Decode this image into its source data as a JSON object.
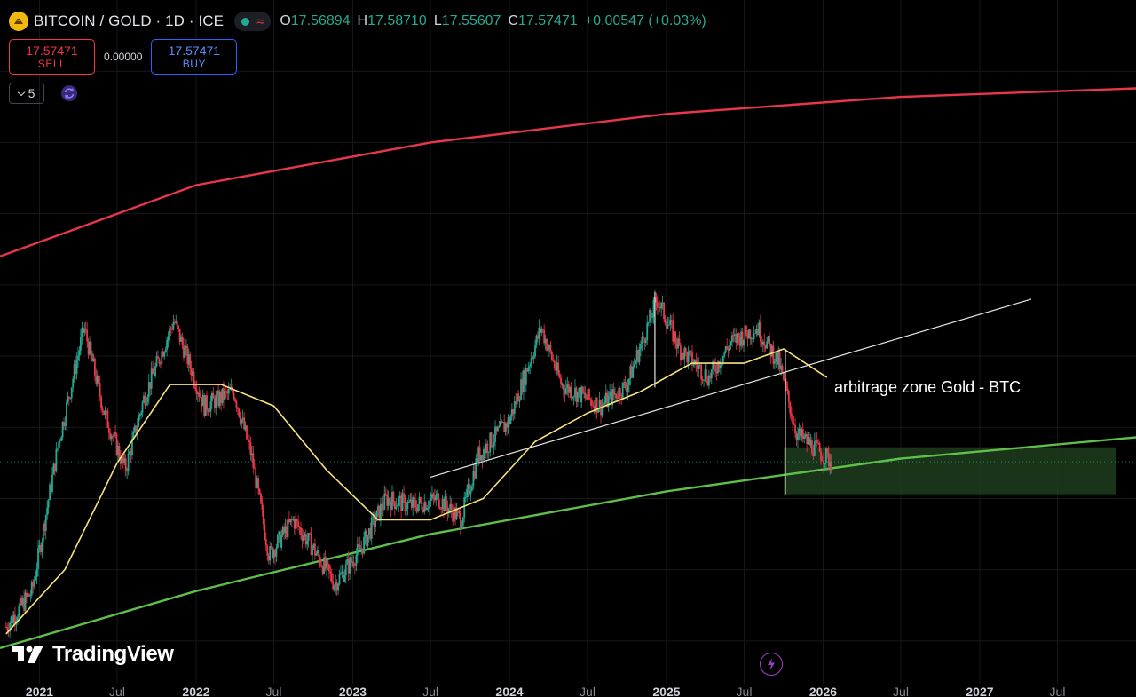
{
  "header": {
    "symbol_title": "BITCOIN / GOLD · 1D · ICE",
    "ohlc": {
      "o_label": "O",
      "o_value": "17.56894",
      "h_label": "H",
      "h_value": "17.58710",
      "l_label": "L",
      "l_value": "17.55607",
      "c_label": "C",
      "c_value": "17.57471",
      "change": "+0.00547 (+0.03%)"
    }
  },
  "trade": {
    "sell_price": "17.57471",
    "sell_label": "SELL",
    "spread": "0.00000",
    "buy_price": "17.57471",
    "buy_label": "BUY"
  },
  "indicators": {
    "collapsed_count": "5"
  },
  "annotation": {
    "zone_label": "arbitrage zone Gold - BTC"
  },
  "branding": {
    "logo_text": "TradingView"
  },
  "x_axis": {
    "ticks": [
      {
        "label": "2021",
        "major": true
      },
      {
        "label": "Jul",
        "major": false
      },
      {
        "label": "2022",
        "major": true
      },
      {
        "label": "Jul",
        "major": false
      },
      {
        "label": "2023",
        "major": true
      },
      {
        "label": "Jul",
        "major": false
      },
      {
        "label": "2024",
        "major": true
      },
      {
        "label": "Jul",
        "major": false
      },
      {
        "label": "2025",
        "major": true
      },
      {
        "label": "Jul",
        "major": false
      },
      {
        "label": "2026",
        "major": true
      },
      {
        "label": "Jul",
        "major": false
      },
      {
        "label": "2027",
        "major": true
      },
      {
        "label": "Jul",
        "major": false
      }
    ]
  },
  "colors": {
    "background": "#000000",
    "up": "#22ab94",
    "down": "#f23645",
    "upper_band": "#e8364a",
    "lower_band": "#5fbf4a",
    "moving_average": "#f7e27a",
    "trendline": "#e6e6e6",
    "zone_fill": "#1f3d1d",
    "buy": "#2962ff",
    "accent": "#9c3fc9"
  },
  "icons": {
    "symbol": "gold-coin-icon",
    "collapse": "chevron-down-icon",
    "sync": "sync-icon",
    "lightning": "lightning-icon"
  },
  "chart_data": {
    "type": "line",
    "title": "BITCOIN / GOLD · 1D · ICE",
    "xlabel": "",
    "ylabel": "",
    "x_range": [
      "2020-10-01",
      "2027-12-31"
    ],
    "current_value": 17.57471,
    "grid": true,
    "series": [
      {
        "points": [
          [
            "2020-10-15",
            6.0
          ],
          [
            "2020-12-15",
            8.5
          ],
          [
            "2021-02-15",
            19.0
          ],
          [
            "2021-04-15",
            27.0
          ],
          [
            "2021-06-01",
            21.0
          ],
          [
            "2021-07-20",
            17.0
          ],
          [
            "2021-09-01",
            22.0
          ],
          [
            "2021-11-10",
            27.5
          ],
          [
            "2022-01-20",
            21.5
          ],
          [
            "2022-03-30",
            22.5
          ],
          [
            "2022-05-10",
            18.0
          ],
          [
            "2022-06-20",
            11.0
          ],
          [
            "2022-08-15",
            13.5
          ],
          [
            "2022-10-01",
            11.5
          ],
          [
            "2022-11-20",
            9.0
          ],
          [
            "2023-01-20",
            11.5
          ],
          [
            "2023-03-20",
            15.0
          ],
          [
            "2023-05-20",
            14.5
          ],
          [
            "2023-07-20",
            15.0
          ],
          [
            "2023-09-10",
            13.5
          ],
          [
            "2023-10-20",
            18.0
          ],
          [
            "2024-01-01",
            20.5
          ],
          [
            "2024-03-15",
            27.0
          ],
          [
            "2024-05-01",
            23.0
          ],
          [
            "2024-08-01",
            21.5
          ],
          [
            "2024-10-01",
            23.0
          ],
          [
            "2024-12-10",
            29.0
          ],
          [
            "2025-02-01",
            25.5
          ],
          [
            "2025-04-10",
            23.5
          ],
          [
            "2025-06-01",
            26.0
          ],
          [
            "2025-08-01",
            27.0
          ],
          [
            "2025-09-20",
            24.5
          ],
          [
            "2025-11-01",
            19.5
          ],
          [
            "2025-12-15",
            18.5
          ],
          [
            "2026-01-20",
            17.57
          ]
        ]
      },
      {
        "points": [
          [
            "2020-10-15",
            5.5
          ],
          [
            "2021-03-01",
            10.0
          ],
          [
            "2021-07-01",
            17.5
          ],
          [
            "2021-11-01",
            23.0
          ],
          [
            "2022-03-01",
            23.0
          ],
          [
            "2022-07-01",
            21.5
          ],
          [
            "2022-11-01",
            17.0
          ],
          [
            "2023-03-01",
            13.5
          ],
          [
            "2023-07-01",
            13.5
          ],
          [
            "2023-11-01",
            15.0
          ],
          [
            "2024-03-01",
            19.0
          ],
          [
            "2024-07-01",
            21.0
          ],
          [
            "2024-11-01",
            22.5
          ],
          [
            "2025-03-01",
            24.5
          ],
          [
            "2025-07-01",
            24.5
          ],
          [
            "2025-10-01",
            25.5
          ],
          [
            "2026-01-10",
            23.5
          ]
        ]
      },
      {
        "points": [
          [
            "2020-10-01",
            32.0
          ],
          [
            "2022-01-01",
            37.0
          ],
          [
            "2023-07-01",
            40.0
          ],
          [
            "2025-01-01",
            42.0
          ],
          [
            "2026-07-01",
            43.2
          ],
          [
            "2027-12-31",
            43.8
          ]
        ]
      },
      {
        "points": [
          [
            "2020-10-01",
            4.5
          ],
          [
            "2022-01-01",
            8.5
          ],
          [
            "2023-07-01",
            12.5
          ],
          [
            "2025-01-01",
            15.5
          ],
          [
            "2026-07-01",
            17.8
          ],
          [
            "2027-12-31",
            19.3
          ]
        ]
      },
      {
        "points": [
          [
            "2023-07-01",
            16.5
          ],
          [
            "2027-05-01",
            29.0
          ]
        ]
      }
    ],
    "annotations": [
      {
        "type": "rect",
        "x": [
          "2025-10-01",
          "2027-11-15"
        ],
        "y": [
          15.3,
          18.6
        ],
        "text": "arbitrage zone Gold - BTC"
      }
    ]
  }
}
